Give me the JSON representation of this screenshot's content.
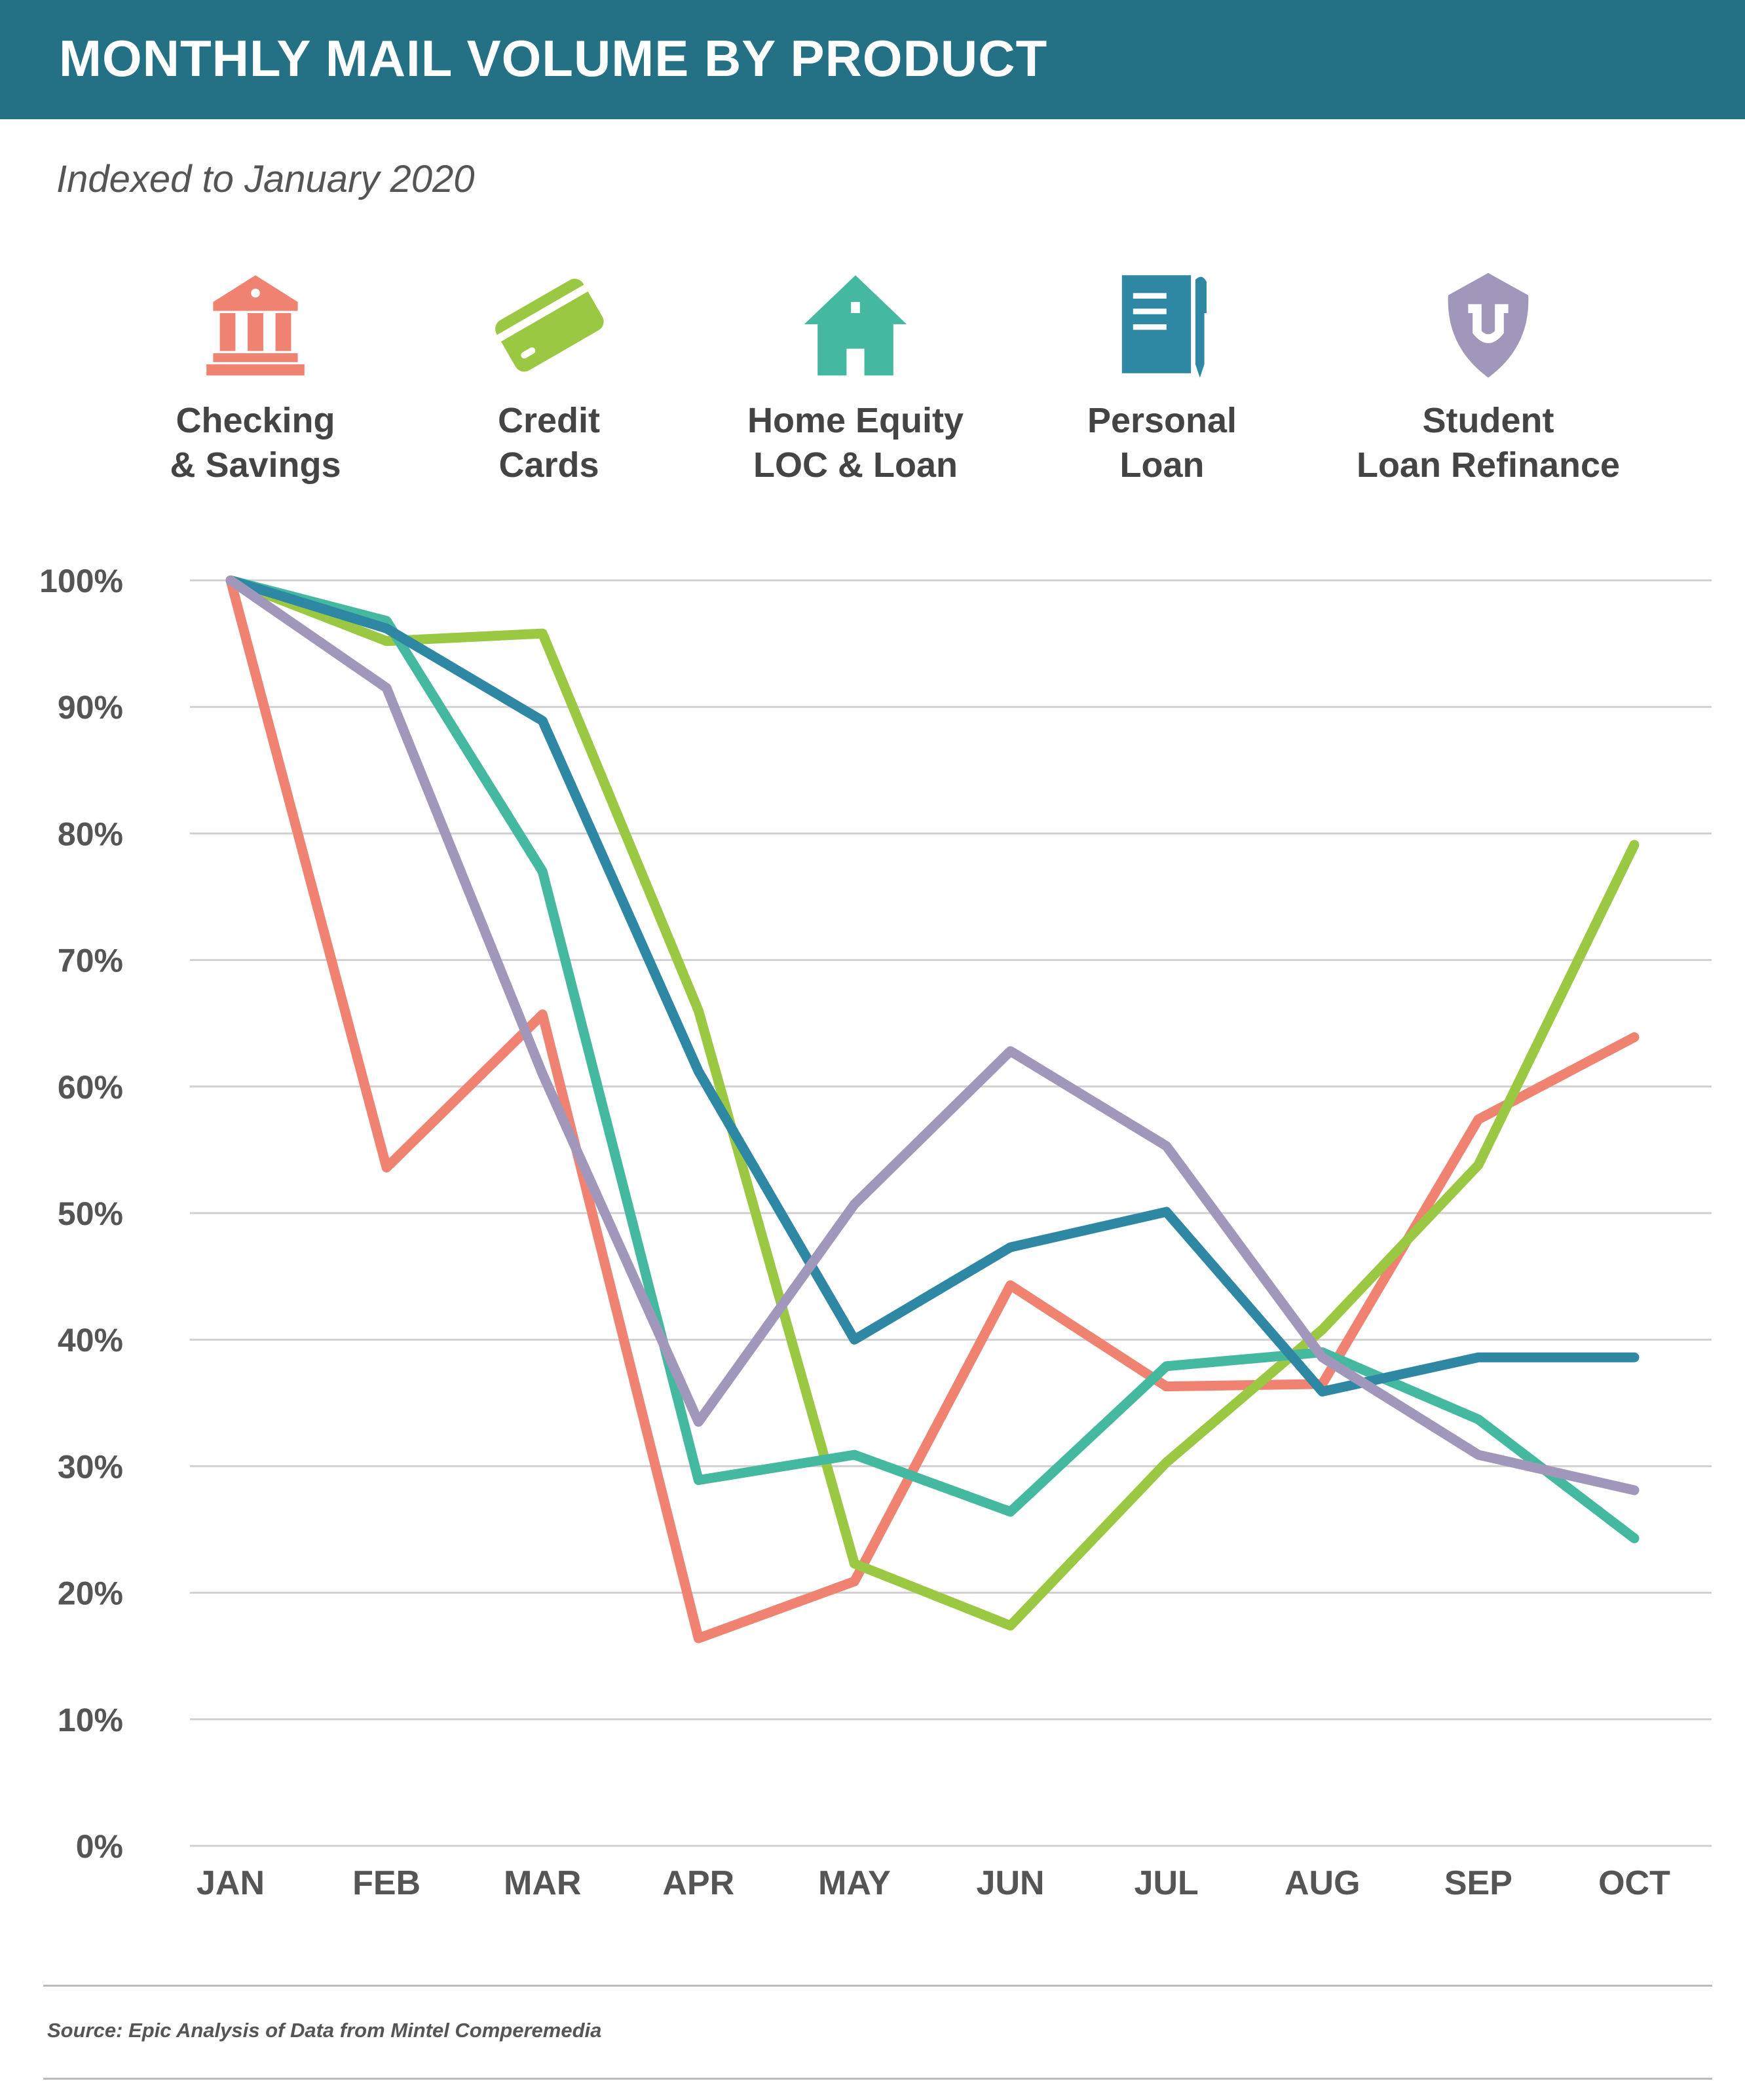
{
  "header": {
    "title": "MONTHLY MAIL VOLUME BY PRODUCT"
  },
  "subtitle": "Indexed to January 2020",
  "legend": [
    {
      "label": "Checking\n& Savings",
      "icon": "bank-icon",
      "color": "#EF8270"
    },
    {
      "label": "Credit\nCards",
      "icon": "credit-card-icon",
      "color": "#9AC842"
    },
    {
      "label": "Home Equity\nLOC & Loan",
      "icon": "house-icon",
      "color": "#45B99F"
    },
    {
      "label": "Personal\nLoan",
      "icon": "notebook-pen-icon",
      "color": "#2E87A3"
    },
    {
      "label": "Student\nLoan Refinance",
      "icon": "shield-u-icon",
      "color": "#A197BB"
    }
  ],
  "chart_data": {
    "type": "line",
    "categories": [
      "JAN",
      "FEB",
      "MAR",
      "APR",
      "MAY",
      "JUN",
      "JUL",
      "AUG",
      "SEP",
      "OCT"
    ],
    "yticks": [
      "0%",
      "10%",
      "20%",
      "30%",
      "40%",
      "50%",
      "60%",
      "70%",
      "80%",
      "90%",
      "100%"
    ],
    "ylim": [
      0,
      100
    ],
    "grid": true,
    "series": [
      {
        "name": "Checking & Savings",
        "color": "#EF8270",
        "values": [
          100,
          53.6,
          65.7,
          16.4,
          20.9,
          44.3,
          36.3,
          36.5,
          57.4,
          63.9
        ]
      },
      {
        "name": "Credit Cards",
        "color": "#9AC842",
        "values": [
          100,
          95.2,
          95.8,
          66.0,
          22.3,
          17.4,
          30.3,
          40.8,
          53.8,
          79.1
        ]
      },
      {
        "name": "Home Equity LOC & Loan",
        "color": "#45B99F",
        "values": [
          100,
          96.8,
          77.0,
          28.9,
          30.9,
          26.4,
          37.9,
          39.0,
          33.7,
          24.3
        ]
      },
      {
        "name": "Personal Loan",
        "color": "#2E87A3",
        "values": [
          100,
          96.2,
          88.9,
          61.2,
          40.0,
          47.3,
          50.1,
          35.9,
          38.6,
          38.6
        ]
      },
      {
        "name": "Student Loan Refinance",
        "color": "#A197BB",
        "values": [
          100,
          91.5,
          61.0,
          33.5,
          50.7,
          62.8,
          55.3,
          38.6,
          30.9,
          28.1
        ]
      }
    ]
  },
  "source": "Source: Epic Analysis of Data from Mintel Comperemedia"
}
